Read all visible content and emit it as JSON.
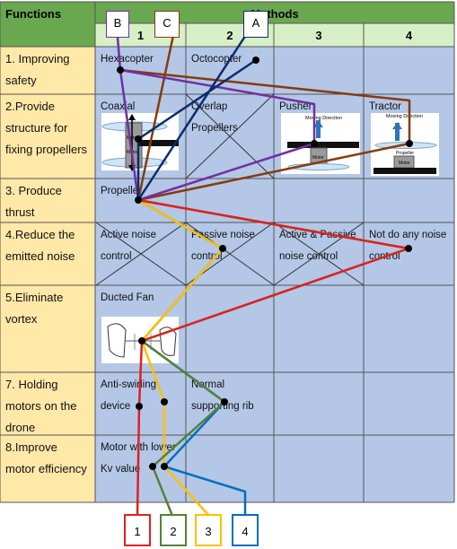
{
  "header": {
    "functions": "Functions",
    "methods": "Methods",
    "cols": [
      "1",
      "2",
      "3",
      "4"
    ]
  },
  "rows": [
    {
      "function": "1. Improving safety",
      "cells": [
        "Hexacopter",
        "Octocopter",
        "",
        ""
      ]
    },
    {
      "function": "2.Provide structure for fixing propellers",
      "cells": [
        "Coaxial",
        "Overlap Propellers",
        "Pusher",
        "Tractor"
      ]
    },
    {
      "function": "3. Produce thrust",
      "cells": [
        "Propeller",
        "",
        "",
        ""
      ]
    },
    {
      "function": "4.Reduce the emitted noise",
      "cells": [
        "Active noise control",
        "Passive noise control",
        "Active & Passive noise control",
        "Not do any noise control"
      ]
    },
    {
      "function": "5.Eliminate vortex",
      "cells": [
        "Ducted Fan",
        "",
        "",
        ""
      ]
    },
    {
      "function": "7. Holding motors on the drone",
      "cells": [
        "Anti-swirling device",
        "Normal supporting rib",
        "",
        ""
      ]
    },
    {
      "function": "8.Improve motor efficiency",
      "cells": [
        "Motor with lower Kv value",
        "",
        "",
        ""
      ]
    }
  ],
  "figure_labels": {
    "moving_direction": "Moving Direction",
    "motor": "Motor",
    "propeller": "Propeller"
  },
  "concepts": [
    {
      "label": "A",
      "color": "#0b2d6b"
    },
    {
      "label": "B",
      "color": "#7030a0"
    },
    {
      "label": "C",
      "color": "#843c0c"
    },
    {
      "label": "1",
      "color": "#e02020"
    },
    {
      "label": "2",
      "color": "#548235"
    },
    {
      "label": "3",
      "color": "#ffc000"
    },
    {
      "label": "4",
      "color": "#0070c0"
    }
  ]
}
